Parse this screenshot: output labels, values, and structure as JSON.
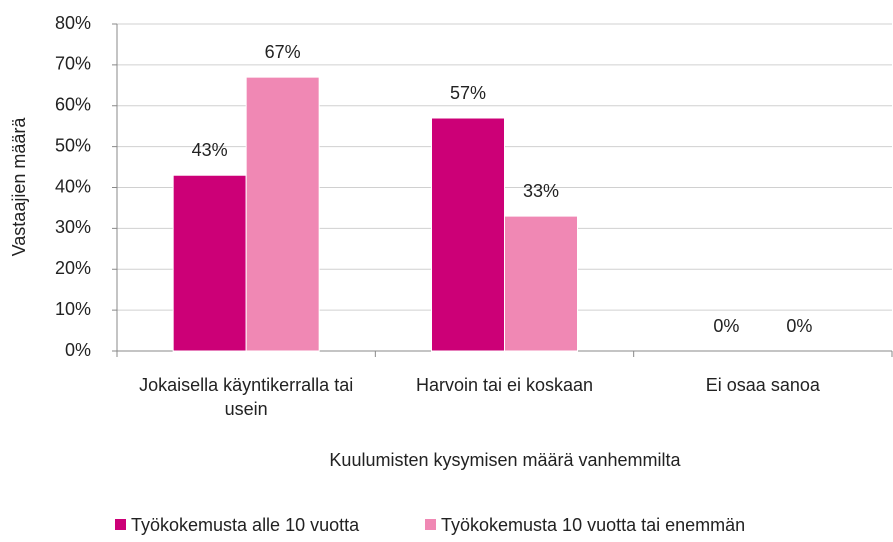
{
  "chart_data": {
    "type": "bar",
    "categories": [
      "Jokaisella käyntikerralla tai usein",
      "Harvoin tai ei koskaan",
      "Ei osaa sanoa"
    ],
    "series": [
      {
        "name": "Työkokemusta alle 10 vuotta",
        "color": "#cc0077",
        "values": [
          43,
          57,
          0
        ],
        "value_labels": [
          "43%",
          "57%",
          "0%"
        ]
      },
      {
        "name": "Työkokemusta 10 vuotta tai enemmän",
        "color": "#f088b4",
        "values": [
          67,
          33,
          0
        ],
        "value_labels": [
          "67%",
          "33%",
          "0%"
        ]
      }
    ],
    "xlabel": "Kuulumisten kysymisen määrä vanhemmilta",
    "ylabel": "Vastaajien määrä",
    "ylim": [
      0,
      80
    ],
    "yticks": [
      {
        "value": 0,
        "label": "0%"
      },
      {
        "value": 10,
        "label": "10%"
      },
      {
        "value": 20,
        "label": "20%"
      },
      {
        "value": 30,
        "label": "30%"
      },
      {
        "value": 40,
        "label": "40%"
      },
      {
        "value": 50,
        "label": "50%"
      },
      {
        "value": 60,
        "label": "60%"
      },
      {
        "value": 70,
        "label": "70%"
      },
      {
        "value": 80,
        "label": "80%"
      }
    ],
    "grid": true,
    "legend": "bottom"
  }
}
